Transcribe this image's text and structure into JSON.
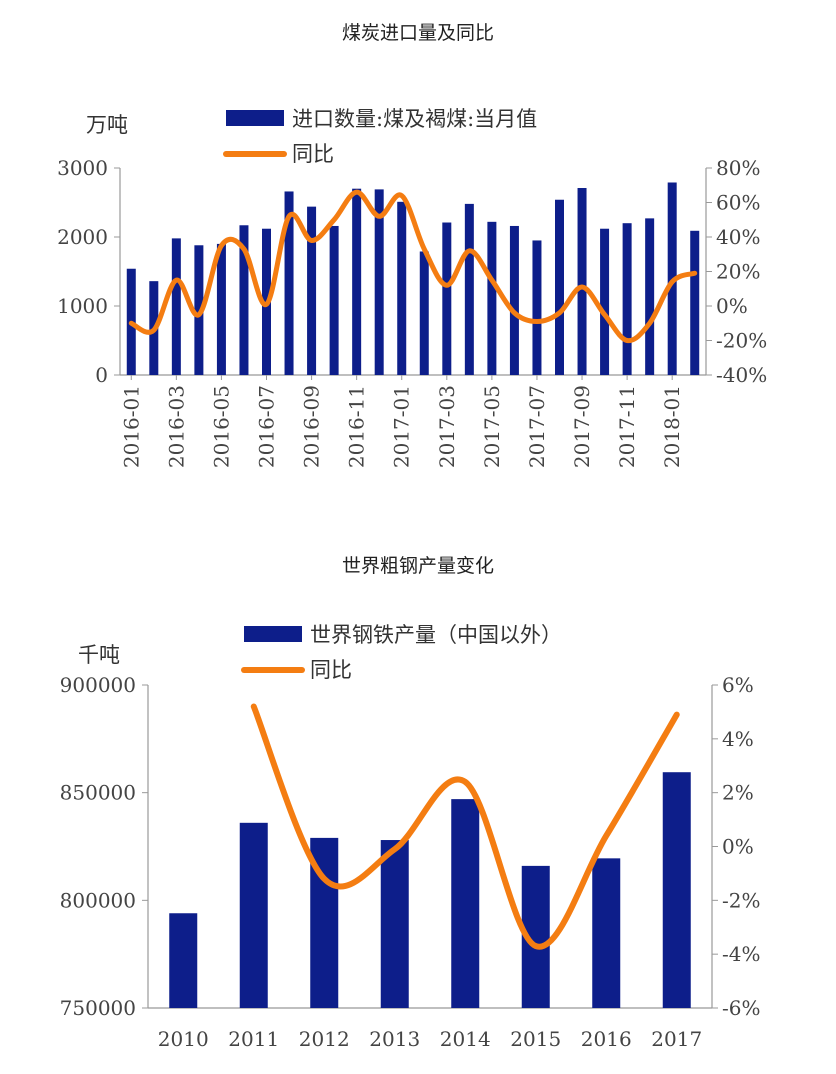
{
  "chart_data": [
    {
      "type": "bar",
      "title": "煤炭进口量及同比",
      "unit_left": "万吨",
      "categories": [
        "2016-01",
        "2016-02",
        "2016-03",
        "2016-04",
        "2016-05",
        "2016-06",
        "2016-07",
        "2016-08",
        "2016-09",
        "2016-10",
        "2016-11",
        "2016-12",
        "2017-01",
        "2017-02",
        "2017-03",
        "2017-04",
        "2017-05",
        "2017-06",
        "2017-07",
        "2017-08",
        "2017-09",
        "2017-10",
        "2017-11",
        "2017-12",
        "2018-01",
        "2018-02"
      ],
      "x_tick_labels": [
        "2016-01",
        "2016-03",
        "2016-05",
        "2016-07",
        "2016-09",
        "2016-11",
        "2017-01",
        "2017-03",
        "2017-05",
        "2017-07",
        "2017-09",
        "2017-11",
        "2018-01"
      ],
      "series": [
        {
          "name": "进口数量:煤及褐煤:当月值",
          "kind": "bar",
          "axis": "left",
          "color": "#0d1e8a",
          "values": [
            1540,
            1360,
            1980,
            1880,
            1900,
            2170,
            2120,
            2660,
            2440,
            2160,
            2700,
            2690,
            2510,
            1790,
            2210,
            2480,
            2220,
            2160,
            1950,
            2540,
            2710,
            2120,
            2200,
            2270,
            2790,
            2090
          ]
        },
        {
          "name": "同比",
          "kind": "line",
          "axis": "right",
          "color": "#f47d12",
          "values": [
            -10,
            -14,
            15,
            -5,
            35,
            33,
            1,
            52,
            38,
            50,
            66,
            52,
            64,
            33,
            12,
            32,
            15,
            -4,
            -9,
            -4,
            11,
            -5,
            -20,
            -10,
            14,
            19
          ]
        }
      ],
      "ylim_left": [
        0,
        3000
      ],
      "yticks_left": [
        "0",
        "1000",
        "2000",
        "3000"
      ],
      "ylim_right": [
        -40,
        80
      ],
      "yticks_right": [
        "-40%",
        "-20%",
        "0%",
        "20%",
        "40%",
        "60%",
        "80%"
      ]
    },
    {
      "type": "bar",
      "title": "世界粗钢产量变化",
      "unit_left": "千吨",
      "categories": [
        "2010",
        "2011",
        "2012",
        "2013",
        "2014",
        "2015",
        "2016",
        "2017"
      ],
      "x_tick_labels": [
        "2010",
        "2011",
        "2012",
        "2013",
        "2014",
        "2015",
        "2016",
        "2017"
      ],
      "series": [
        {
          "name": "世界钢铁产量（中国以外）",
          "kind": "bar",
          "axis": "left",
          "color": "#0d1e8a",
          "values": [
            794000,
            836000,
            829000,
            828000,
            847000,
            816000,
            819500,
            859500
          ]
        },
        {
          "name": "同比",
          "kind": "line",
          "axis": "right",
          "color": "#f47d12",
          "values": [
            null,
            5.2,
            -1.2,
            -0.1,
            2.4,
            -3.7,
            0.4,
            4.9
          ]
        }
      ],
      "ylim_left": [
        750000,
        900000
      ],
      "yticks_left": [
        "750000",
        "800000",
        "850000",
        "900000"
      ],
      "ylim_right": [
        -6,
        6
      ],
      "yticks_right": [
        "-6%",
        "-4%",
        "-2%",
        "0%",
        "2%",
        "4%",
        "6%"
      ]
    }
  ]
}
